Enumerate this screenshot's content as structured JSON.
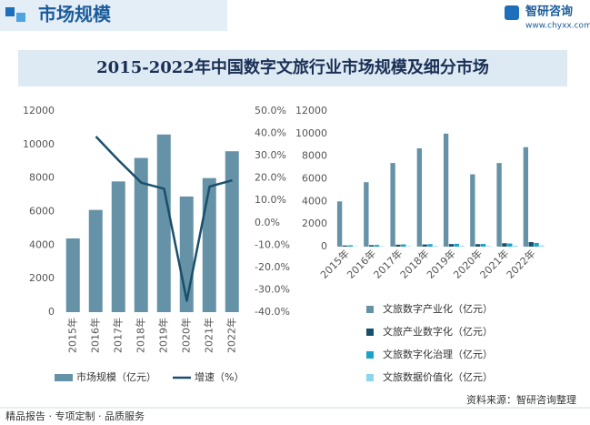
{
  "header": {
    "title": "市场规模",
    "brand": "智研咨询",
    "url": "www.chyxx.com"
  },
  "page_title": "2015-2022年中国数字文旅行业市场规模及细分市场",
  "chart_data": [
    {
      "type": "combo",
      "legend_layout": "row",
      "x_label_rotation": -90,
      "categories": [
        "2015年",
        "2016年",
        "2017年",
        "2018年",
        "2019年",
        "2020年",
        "2021年",
        "2022年"
      ],
      "ylim": [
        0,
        12000
      ],
      "yticks": [
        0,
        2000,
        4000,
        6000,
        8000,
        10000,
        12000
      ],
      "y2lim": [
        -40,
        50
      ],
      "y2ticks": [
        {
          "value": -40,
          "label": "-40.0%"
        },
        {
          "value": -30,
          "label": "-30.0%"
        },
        {
          "value": -20,
          "label": "-20.0%"
        },
        {
          "value": -10,
          "label": "-10.0%"
        },
        {
          "value": 0,
          "label": "0.0%"
        },
        {
          "value": 10,
          "label": "10.0%"
        },
        {
          "value": 20,
          "label": "20.0%"
        },
        {
          "value": 30,
          "label": "30.0%"
        },
        {
          "value": 40,
          "label": "40.0%"
        },
        {
          "value": 50,
          "label": "50.0%"
        }
      ],
      "series": [
        {
          "name": "市场规模（亿元）",
          "type": "bar",
          "color": "#6592a6",
          "values": [
            4400,
            6100,
            7800,
            9200,
            10600,
            6900,
            8000,
            9600
          ]
        },
        {
          "name": "增速（%）",
          "type": "line",
          "axis": "y2",
          "color": "#1a4f6b",
          "values": [
            null,
            38.6,
            27.9,
            17.9,
            15.2,
            -34.9,
            16.2,
            19.0
          ]
        }
      ]
    },
    {
      "type": "bar",
      "legend_layout": "column",
      "x_label_rotation": -45,
      "categories": [
        "2015年",
        "2016年",
        "2017年",
        "2018年",
        "2019年",
        "2020年",
        "2021年",
        "2022年"
      ],
      "ylim": [
        0,
        12000
      ],
      "yticks": [
        0,
        2000,
        4000,
        6000,
        8000,
        10000,
        12000
      ],
      "series": [
        {
          "name": "文旅数字产业化（亿元）",
          "type": "bar",
          "color": "#6592a6",
          "values": [
            4000,
            5700,
            7400,
            8700,
            10000,
            6400,
            7400,
            8800
          ]
        },
        {
          "name": "文旅产业数字化（亿元）",
          "type": "bar",
          "color": "#17506b",
          "values": [
            100,
            130,
            170,
            190,
            230,
            220,
            300,
            400
          ]
        },
        {
          "name": "文旅数字化治理（亿元）",
          "type": "bar",
          "color": "#1ba2c9",
          "values": [
            120,
            150,
            200,
            220,
            250,
            240,
            280,
            330
          ]
        },
        {
          "name": "文旅数据价值化（亿元）",
          "type": "bar",
          "color": "#8fd4ee",
          "values": [
            30,
            40,
            50,
            60,
            70,
            60,
            80,
            100
          ]
        }
      ]
    }
  ],
  "footer": {
    "slogan": "精品报告 · 专项定制 · 品质服务",
    "source": "资料来源：智研咨询整理"
  }
}
